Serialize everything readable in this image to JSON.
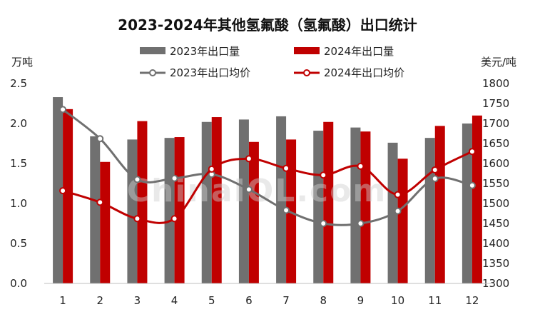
{
  "chart_data": {
    "type": "bar",
    "title": "2023-2024年其他氢氟酸（氢氟酸）出口统计",
    "ylabel_left": "万吨",
    "ylabel_right": "美元/吨",
    "watermark": "ChinaIOL.com",
    "categories": [
      "1",
      "2",
      "3",
      "4",
      "5",
      "6",
      "7",
      "8",
      "9",
      "10",
      "11",
      "12"
    ],
    "ylim_left": [
      0,
      2.5
    ],
    "yticks_left": [
      "0.0",
      "0.5",
      "1.0",
      "1.5",
      "2.0",
      "2.5"
    ],
    "ylim_right": [
      1300,
      1800
    ],
    "yticks_right": [
      "1300",
      "1350",
      "1400",
      "1450",
      "1500",
      "1550",
      "1600",
      "1650",
      "1700",
      "1750",
      "1800"
    ],
    "legend_position": "top",
    "grid": false,
    "bar_series": [
      {
        "name": "2023年出口量",
        "color": "#707070",
        "values": [
          2.33,
          1.84,
          1.8,
          1.82,
          2.02,
          2.05,
          2.09,
          1.91,
          1.95,
          1.76,
          1.82,
          2.0
        ]
      },
      {
        "name": "2024年出口量",
        "color": "#c00000",
        "values": [
          2.18,
          1.52,
          2.03,
          1.83,
          2.08,
          1.77,
          1.8,
          2.02,
          1.9,
          1.56,
          1.97,
          2.1
        ]
      }
    ],
    "line_series": [
      {
        "name": "2023年出口均价",
        "color": "#707070",
        "values": [
          1735,
          1662,
          1560,
          1563,
          1573,
          1535,
          1483,
          1450,
          1450,
          1481,
          1562,
          1545
        ]
      },
      {
        "name": "2024年出口均价",
        "color": "#c00000",
        "values": [
          1532,
          1503,
          1462,
          1462,
          1586,
          1612,
          1588,
          1571,
          1593,
          1522,
          1584,
          1630
        ]
      }
    ]
  }
}
